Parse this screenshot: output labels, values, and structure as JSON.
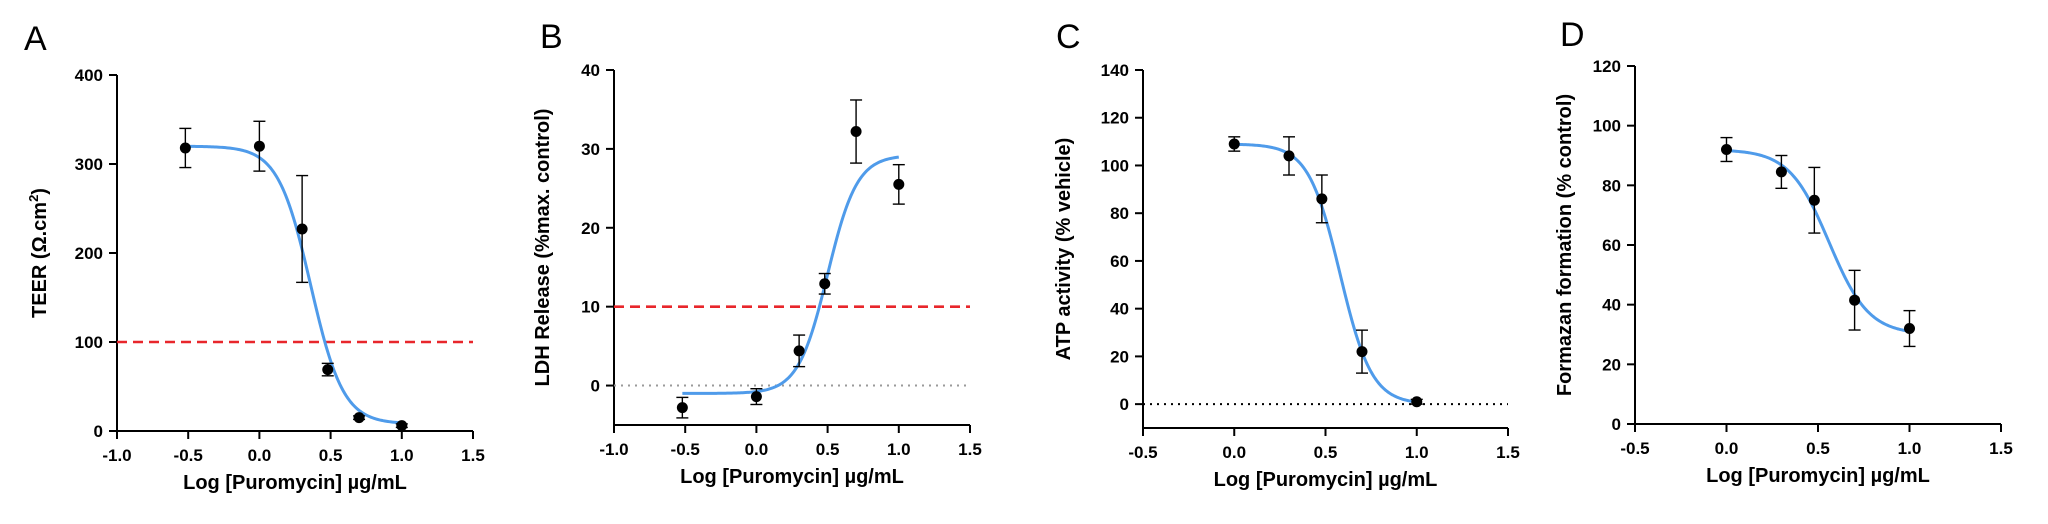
{
  "chart_data": [
    {
      "type": "scatter",
      "panel": "A",
      "ylabel": "TEER (Ω.cm²)",
      "ylabel_main": "TEER (Ω.cm",
      "ylabel_sup": "2",
      "ylabel_tail": ")",
      "xlabel": "Log [Puromycin] µg/mL",
      "xlim": [
        -1.0,
        1.5
      ],
      "ylim": [
        0,
        400
      ],
      "xticks": [
        -1.0,
        -0.5,
        0.0,
        0.5,
        1.0,
        1.5
      ],
      "xtick_labels": [
        "-1.0",
        "-0.5",
        "0.0",
        "0.5",
        "1.0",
        "1.5"
      ],
      "yticks": [
        0,
        100,
        200,
        300,
        400
      ],
      "ytick_labels": [
        "0",
        "100",
        "200",
        "300",
        "400"
      ],
      "points": [
        {
          "x": -0.52,
          "y": 318,
          "err": 22
        },
        {
          "x": 0.0,
          "y": 320,
          "err": 28
        },
        {
          "x": 0.3,
          "y": 227,
          "err": 60
        },
        {
          "x": 0.48,
          "y": 69,
          "err": 7
        },
        {
          "x": 0.7,
          "y": 15,
          "err": 2
        },
        {
          "x": 1.0,
          "y": 6,
          "err": 2
        }
      ],
      "fit": {
        "model": "sigmoid",
        "top": 320,
        "bottom": 8,
        "ec50": 0.36,
        "hill": -3.8,
        "x_start": -0.52,
        "x_end": 1.0
      },
      "reference_line": {
        "y": 100,
        "color": "#e8262b",
        "style": "dashed"
      }
    },
    {
      "type": "scatter",
      "panel": "B",
      "ylabel": "LDH Release (%max. control)",
      "xlabel": "Log [Puromycin] µg/mL",
      "xlim": [
        -1.0,
        1.5
      ],
      "ylim": [
        -5,
        40
      ],
      "xticks": [
        -1.0,
        -0.5,
        0.0,
        0.5,
        1.0,
        1.5
      ],
      "xtick_labels": [
        "-1.0",
        "-0.5",
        "0.0",
        "0.5",
        "1.0",
        "1.5"
      ],
      "yticks": [
        0,
        10,
        20,
        30,
        40
      ],
      "ytick_labels": [
        "0",
        "10",
        "20",
        "30",
        "40"
      ],
      "points": [
        {
          "x": -0.52,
          "y": -2.8,
          "err": 1.3
        },
        {
          "x": 0.0,
          "y": -1.4,
          "err": 1.0
        },
        {
          "x": 0.3,
          "y": 4.4,
          "err": 2.0
        },
        {
          "x": 0.48,
          "y": 12.9,
          "err": 1.3
        },
        {
          "x": 0.7,
          "y": 32.2,
          "err": 4.0
        },
        {
          "x": 1.0,
          "y": 25.5,
          "err": 2.5
        }
      ],
      "fit": {
        "model": "sigmoid",
        "top": 29.2,
        "bottom": -1.0,
        "ec50": 0.5,
        "hill": 4.2,
        "x_start": -0.52,
        "x_end": 1.0
      },
      "reference_line": {
        "y": 10,
        "color": "#e8262b",
        "style": "dashed"
      },
      "zero_line": {
        "y": 0,
        "color": "#9a9a9a",
        "style": "dotted"
      }
    },
    {
      "type": "scatter",
      "panel": "C",
      "ylabel": "ATP activity  (% vehicle)",
      "xlabel": "Log [Puromycin] µg/mL",
      "xlim": [
        -0.5,
        1.5
      ],
      "ylim": [
        -10,
        140
      ],
      "xticks": [
        -0.5,
        0.0,
        0.5,
        1.0,
        1.5
      ],
      "xtick_labels": [
        "-0.5",
        "0.0",
        "0.5",
        "1.0",
        "1.5"
      ],
      "yticks": [
        0,
        20,
        40,
        60,
        80,
        100,
        120,
        140
      ],
      "ytick_labels": [
        "0",
        "20",
        "40",
        "60",
        "80",
        "100",
        "120",
        "140"
      ],
      "points": [
        {
          "x": 0.0,
          "y": 109,
          "err": 3
        },
        {
          "x": 0.3,
          "y": 104,
          "err": 8
        },
        {
          "x": 0.48,
          "y": 86,
          "err": 10
        },
        {
          "x": 0.7,
          "y": 22,
          "err": 9
        },
        {
          "x": 1.0,
          "y": 1,
          "err": 1
        }
      ],
      "fit": {
        "model": "sigmoid",
        "top": 109,
        "bottom": 0,
        "ec50": 0.58,
        "hill": -5.0,
        "x_start": 0.0,
        "x_end": 1.0
      },
      "zero_line": {
        "y": 0,
        "color": "#000000",
        "style": "dotted"
      }
    },
    {
      "type": "scatter",
      "panel": "D",
      "ylabel": "Formazan formation (% control)",
      "xlabel": "Log [Puromycin] µg/mL",
      "xlim": [
        -0.5,
        1.5
      ],
      "ylim": [
        0,
        120
      ],
      "xticks": [
        -0.5,
        0.0,
        0.5,
        1.0,
        1.5
      ],
      "xtick_labels": [
        "-0.5",
        "0.0",
        "0.5",
        "1.0",
        "1.5"
      ],
      "yticks": [
        0,
        20,
        40,
        60,
        80,
        100,
        120
      ],
      "ytick_labels": [
        "0",
        "20",
        "40",
        "60",
        "80",
        "100",
        "120"
      ],
      "points": [
        {
          "x": 0.0,
          "y": 92,
          "err": 4
        },
        {
          "x": 0.3,
          "y": 84.5,
          "err": 5.5
        },
        {
          "x": 0.48,
          "y": 75,
          "err": 11
        },
        {
          "x": 0.7,
          "y": 41.5,
          "err": 10
        },
        {
          "x": 1.0,
          "y": 32,
          "err": 6
        }
      ],
      "fit": {
        "model": "sigmoid",
        "top": 92,
        "bottom": 30,
        "ec50": 0.56,
        "hill": -4.0,
        "x_start": 0.0,
        "x_end": 1.0
      }
    }
  ],
  "colors": {
    "fit": "#4f9bea",
    "points": "#000000",
    "reference": "#e8262b",
    "zero_gray": "#9a9a9a"
  }
}
